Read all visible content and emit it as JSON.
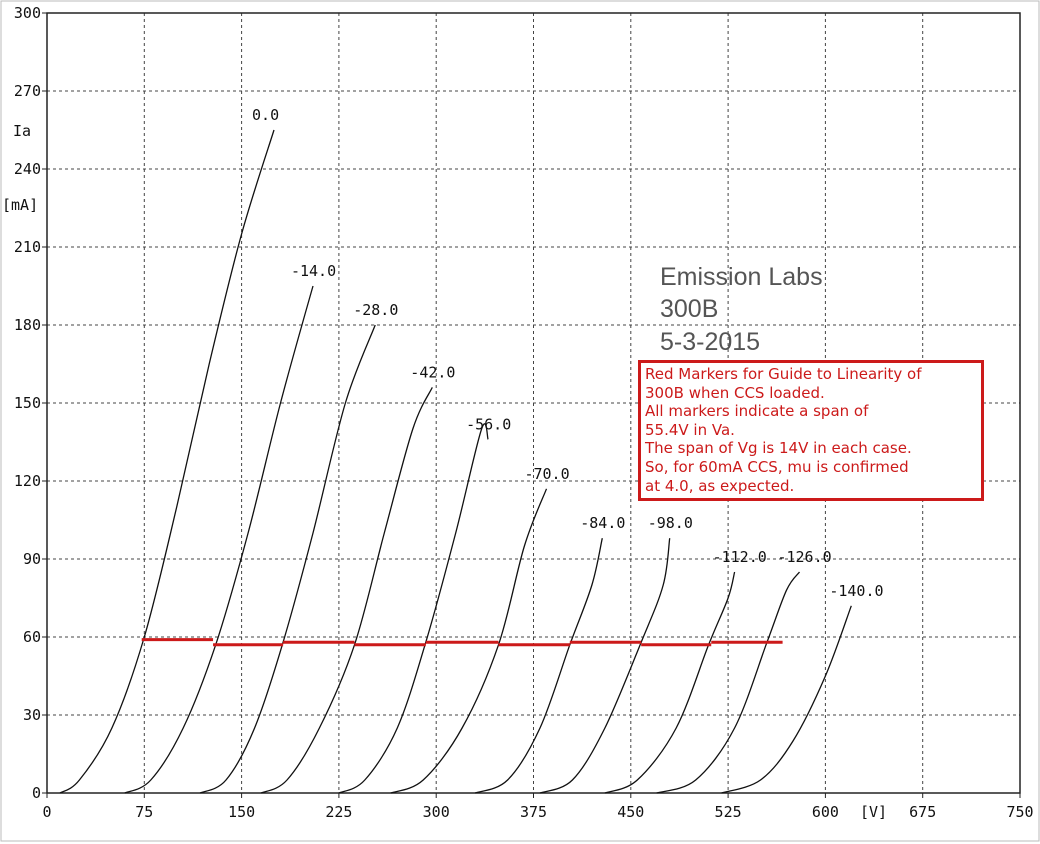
{
  "chart_data": {
    "type": "line",
    "title_lines": [
      "Emission Labs",
      "300B",
      "5-3-2015"
    ],
    "ylabel_lines": [
      "Ia",
      "[mA]"
    ],
    "xlabel": "[V]",
    "xlim": [
      0,
      750
    ],
    "ylim": [
      0,
      300
    ],
    "x_ticks": [
      "0",
      "75",
      "150",
      "225",
      "300",
      "375",
      "450",
      "525",
      "600",
      "675",
      "750"
    ],
    "y_ticks": [
      "0",
      "30",
      "60",
      "90",
      "120",
      "150",
      "180",
      "210",
      "240",
      "270",
      "300"
    ],
    "grid": true,
    "series": [
      {
        "name": "0.0",
        "points": [
          [
            10,
            0
          ],
          [
            25,
            5
          ],
          [
            50,
            25
          ],
          [
            75,
            60
          ],
          [
            100,
            110
          ],
          [
            125,
            165
          ],
          [
            150,
            215
          ],
          [
            175,
            255
          ]
        ]
      },
      {
        "name": "-14.0",
        "points": [
          [
            60,
            0
          ],
          [
            80,
            5
          ],
          [
            105,
            25
          ],
          [
            130,
            57
          ],
          [
            155,
            100
          ],
          [
            180,
            150
          ],
          [
            205,
            195
          ]
        ]
      },
      {
        "name": "-28.0",
        "points": [
          [
            118,
            0
          ],
          [
            138,
            5
          ],
          [
            160,
            25
          ],
          [
            182,
            58
          ],
          [
            205,
            100
          ],
          [
            230,
            150
          ],
          [
            253,
            180
          ]
        ]
      },
      {
        "name": "-42.0",
        "points": [
          [
            165,
            0
          ],
          [
            185,
            5
          ],
          [
            210,
            25
          ],
          [
            237,
            57
          ],
          [
            260,
            100
          ],
          [
            282,
            140
          ],
          [
            297,
            156
          ]
        ]
      },
      {
        "name": "-56.0",
        "points": [
          [
            225,
            0
          ],
          [
            245,
            5
          ],
          [
            270,
            25
          ],
          [
            292,
            58
          ],
          [
            315,
            100
          ],
          [
            335,
            140
          ],
          [
            340,
            136
          ]
        ]
      },
      {
        "name": "-70.0",
        "points": [
          [
            265,
            0
          ],
          [
            290,
            5
          ],
          [
            320,
            25
          ],
          [
            348,
            57
          ],
          [
            368,
            95
          ],
          [
            385,
            117
          ]
        ]
      },
      {
        "name": "-84.0",
        "points": [
          [
            330,
            0
          ],
          [
            355,
            5
          ],
          [
            380,
            25
          ],
          [
            403,
            57
          ],
          [
            420,
            80
          ],
          [
            428,
            98
          ]
        ]
      },
      {
        "name": "-98.0",
        "points": [
          [
            380,
            0
          ],
          [
            405,
            5
          ],
          [
            430,
            25
          ],
          [
            458,
            58
          ],
          [
            475,
            80
          ],
          [
            480,
            98
          ]
        ]
      },
      {
        "name": "-112.0",
        "points": [
          [
            430,
            0
          ],
          [
            455,
            5
          ],
          [
            485,
            25
          ],
          [
            510,
            57
          ],
          [
            525,
            75
          ],
          [
            530,
            85
          ]
        ]
      },
      {
        "name": "-126.0",
        "points": [
          [
            470,
            0
          ],
          [
            500,
            5
          ],
          [
            530,
            25
          ],
          [
            555,
            58
          ],
          [
            570,
            78
          ],
          [
            580,
            85
          ]
        ]
      },
      {
        "name": "-140.0",
        "points": [
          [
            520,
            0
          ],
          [
            550,
            5
          ],
          [
            575,
            20
          ],
          [
            600,
            45
          ],
          [
            620,
            72
          ]
        ]
      }
    ],
    "markers": {
      "color": "#cc1a1a",
      "segments": [
        [
          [
            73,
            59
          ],
          [
            128,
            59
          ]
        ],
        [
          [
            128,
            57
          ],
          [
            182,
            57
          ]
        ],
        [
          [
            182,
            58
          ],
          [
            237,
            58
          ]
        ],
        [
          [
            237,
            57
          ],
          [
            292,
            57
          ]
        ],
        [
          [
            292,
            58
          ],
          [
            348,
            58
          ]
        ],
        [
          [
            348,
            57
          ],
          [
            403,
            57
          ]
        ],
        [
          [
            403,
            58
          ],
          [
            458,
            58
          ]
        ],
        [
          [
            458,
            57
          ],
          [
            512,
            57
          ]
        ],
        [
          [
            512,
            58
          ],
          [
            567,
            58
          ]
        ]
      ]
    }
  },
  "note": {
    "color": "#cc1a1a",
    "lines": [
      "Red Markers for Guide to Linearity of",
      "300B when CCS loaded.",
      "All markers indicate a span of",
      "55.4V in Va.",
      "The span of Vg is 14V in each case.",
      "So, for 60mA CCS, mu is confirmed",
      "at 4.0, as expected."
    ]
  }
}
